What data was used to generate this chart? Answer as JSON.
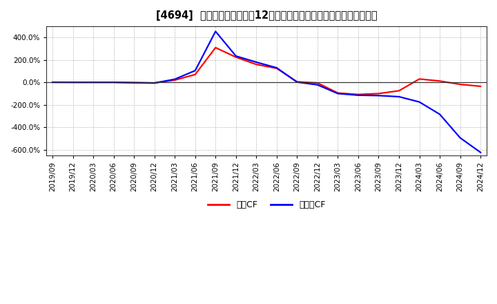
{
  "title": "[4694]  キャッシュフローの12か月移動合計の対前年同期増減率の推移",
  "xlabel_dates": [
    "2019/09",
    "2019/12",
    "2020/03",
    "2020/06",
    "2020/09",
    "2020/12",
    "2021/03",
    "2021/06",
    "2021/09",
    "2021/12",
    "2022/03",
    "2022/06",
    "2022/09",
    "2022/12",
    "2023/03",
    "2023/06",
    "2023/09",
    "2023/12",
    "2024/03",
    "2024/06",
    "2024/09",
    "2024/12"
  ],
  "operating_cf": [
    1.0,
    0.5,
    0.5,
    0.5,
    -3.0,
    -5.0,
    20.0,
    70.0,
    310.0,
    225.0,
    160.0,
    125.0,
    5.0,
    -5.0,
    -95.0,
    -108.0,
    -100.0,
    -75.0,
    30.0,
    12.0,
    -18.0,
    -35.0
  ],
  "free_cf": [
    1.0,
    0.5,
    0.5,
    0.5,
    -3.0,
    -6.0,
    28.0,
    105.0,
    455.0,
    235.0,
    180.0,
    130.0,
    2.0,
    -22.0,
    -100.0,
    -115.0,
    -118.0,
    -128.0,
    -175.0,
    -285.0,
    -495.0,
    -625.0
  ],
  "operating_color": "#ff0000",
  "free_color": "#0000ff",
  "background_color": "#ffffff",
  "plot_bg_color": "#ffffff",
  "grid_color": "#999999",
  "ylim": [
    -650,
    500
  ],
  "yticks": [
    -600,
    -400,
    -200,
    0,
    200,
    400
  ],
  "legend_labels": [
    "営業CF",
    "フリーCF"
  ],
  "title_fontsize": 10.5,
  "tick_fontsize": 7.5,
  "legend_fontsize": 9
}
